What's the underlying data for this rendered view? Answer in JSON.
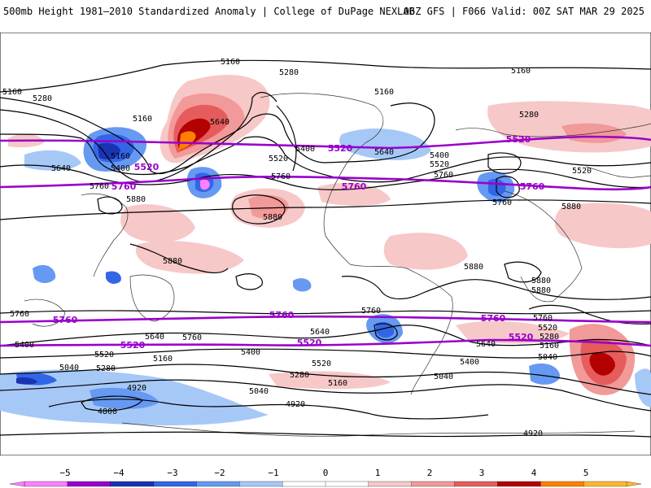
{
  "header": {
    "left_title": "500mb Height 1981–2010 Standardized Anomaly | College of DuPage NEXLAB",
    "right_title": "06Z GFS | F066 Valid: 00Z SAT MAR 29 2025"
  },
  "colorbar": {
    "ticks": [
      "−5",
      "−4",
      "−3",
      "−2",
      "−1",
      "0",
      "1",
      "2",
      "3",
      "4",
      "5"
    ],
    "colors": [
      "#ff80ff",
      "#9900cc",
      "#1a33b3",
      "#3366e6",
      "#6699f2",
      "#a6c8f7",
      "#ffffff",
      "#ffffff",
      "#f7c8c8",
      "#f29999",
      "#e65c5c",
      "#b30000",
      "#ff8000",
      "#ffb733"
    ]
  },
  "map": {
    "thick_contour_color": "#9900cc",
    "labels": {
      "c5160_tl": "5160",
      "c5160_a": "5160",
      "c5160_tr": "5160",
      "c5160_na": "5160",
      "c5160_l": "5160",
      "c5160_ak": "5160",
      "c5280_t": "5280",
      "c5280_l": "5280",
      "c5280_r": "5280",
      "c5640_pac": "5640",
      "c5640_l": "5640",
      "c5640_at": "5640",
      "c5400_a": "5400",
      "c5400_b": "5400",
      "c5400_c": "5400",
      "c5520_us": "5520",
      "c5520_eu": "5520",
      "c5520_p": "5520",
      "c5520_at": "5520",
      "c5520_eur": "5520",
      "c5760_t": "5760",
      "c5760_ce": "5760",
      "c5760_at": "5760",
      "c5760_l": "5760",
      "c5760_med": "5760",
      "c5880_pac": "5880",
      "c5880_l": "5880",
      "c5880_afr": "5880",
      "c5880_sam": "5880",
      "c5880_afr2": "5880",
      "c5880_wp": "5880",
      "c5760_s1": "5760",
      "c5760_s2": "5760",
      "c5760_s3": "5760",
      "c5760_s4": "5760",
      "c5640_s1": "5640",
      "c5640_s2": "5640",
      "c5640_s3": "5640",
      "c5640_s4": "5640",
      "c5520_s1": "5520",
      "c5520_s2": "5520",
      "c5520_s3": "5520",
      "c5520_s4": "5520",
      "c5520_s5": "5520",
      "c5400_s1": "5400",
      "c5400_s2": "5400",
      "c5400_s3": "5400",
      "c5280_s1": "5280",
      "c5280_s2": "5280",
      "c5280_s3": "5280",
      "c5160_s1": "5160",
      "c5160_s2": "5160",
      "c5040_s1": "5040",
      "c5040_s2": "5040",
      "c5040_s3": "5040",
      "c5040_s4": "5040",
      "c4920_s1": "4920",
      "c4920_s2": "4920",
      "c4920_s3": "4920",
      "c4800_s1": "4800",
      "c5280_s4": "5280",
      "c5160_s3": "5160"
    }
  }
}
